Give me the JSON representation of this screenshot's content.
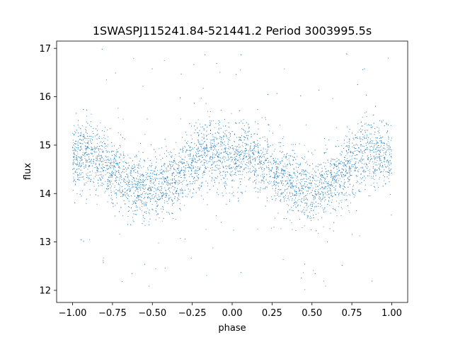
{
  "chart_data": {
    "type": "scatter",
    "title": "1SWASPJ115241.84-521441.2 Period 3003995.5s",
    "xlabel": "phase",
    "ylabel": "flux",
    "xlim": [
      -1.1,
      1.1
    ],
    "ylim": [
      11.75,
      17.15
    ],
    "xticks": [
      -1.0,
      -0.75,
      -0.5,
      -0.25,
      0.0,
      0.25,
      0.5,
      0.75,
      1.0
    ],
    "xtick_labels": [
      "−1.00",
      "−0.75",
      "−0.50",
      "−0.25",
      "0.00",
      "0.25",
      "0.50",
      "0.75",
      "1.00"
    ],
    "yticks": [
      12,
      13,
      14,
      15,
      16,
      17
    ],
    "ytick_labels": [
      "12",
      "13",
      "14",
      "15",
      "16",
      "17"
    ],
    "grid": false,
    "marker_color": "#1f77b4",
    "series": [
      {
        "phase_range": [
          -1.0,
          1.0
        ],
        "profile": [
          {
            "phase": -1.0,
            "flux": 14.7
          },
          {
            "phase": -0.9,
            "flux": 14.8
          },
          {
            "phase": -0.75,
            "flux": 14.5
          },
          {
            "phase": -0.6,
            "flux": 14.15
          },
          {
            "phase": -0.5,
            "flux": 14.05
          },
          {
            "phase": -0.4,
            "flux": 14.2
          },
          {
            "phase": -0.3,
            "flux": 14.45
          },
          {
            "phase": -0.2,
            "flux": 14.8
          },
          {
            "phase": -0.1,
            "flux": 14.85
          },
          {
            "phase": 0.0,
            "flux": 14.7
          },
          {
            "phase": 0.1,
            "flux": 14.8
          },
          {
            "phase": 0.25,
            "flux": 14.5
          },
          {
            "phase": 0.4,
            "flux": 14.15
          },
          {
            "phase": 0.5,
            "flux": 14.05
          },
          {
            "phase": 0.6,
            "flux": 14.2
          },
          {
            "phase": 0.7,
            "flux": 14.45
          },
          {
            "phase": 0.8,
            "flux": 14.8
          },
          {
            "phase": 0.9,
            "flux": 14.85
          },
          {
            "phase": 1.0,
            "flux": 14.7
          }
        ],
        "scatter_sigma": 0.35,
        "flux_min": 12.0,
        "flux_max": 17.0
      }
    ]
  }
}
